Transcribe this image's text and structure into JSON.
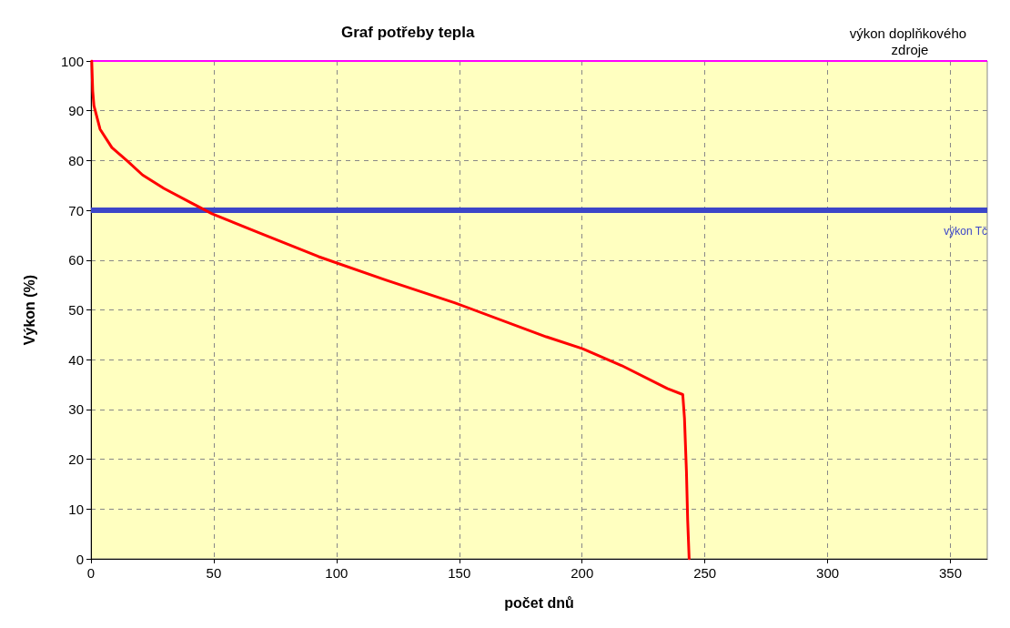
{
  "chart_data": {
    "type": "line",
    "title": "Graf potřeby tepla",
    "xlabel": "počet dnů",
    "ylabel": "Výkon (%)",
    "x": [
      0.3,
      0.7,
      1.2,
      3.7,
      8.5,
      14.8,
      21,
      29.7,
      40.8,
      49.3,
      70.4,
      92.7,
      120,
      148.3,
      185.4,
      200.2,
      216.2,
      234.7,
      241,
      241.7,
      242.5,
      243,
      243.6
    ],
    "series": [
      {
        "color": "#ff0000",
        "values": [
          100,
          94,
          91,
          86.3,
          82.6,
          79.9,
          77.1,
          74.4,
          71.5,
          69.3,
          65.1,
          60.7,
          56,
          51.4,
          44.6,
          42.2,
          38.8,
          34.2,
          33,
          28.2,
          17.5,
          7.7,
          0
        ]
      }
    ],
    "xlim": [
      0,
      365
    ],
    "xticks": [
      0,
      50,
      100,
      150,
      200,
      250,
      300,
      350
    ],
    "ylim": [
      0,
      100
    ],
    "yticks": [
      0,
      10,
      20,
      30,
      40,
      50,
      60,
      70,
      80,
      90,
      100
    ],
    "grid": true,
    "marker": "none",
    "line_style": "solid",
    "ref_lines": [
      {
        "axis": "y",
        "value": 70,
        "label": "výkon Tč",
        "color": "#3c46c8"
      },
      {
        "axis": "y",
        "value": 100,
        "label": "výkon doplňkového zdroje",
        "color": "#ff00ff"
      }
    ]
  }
}
